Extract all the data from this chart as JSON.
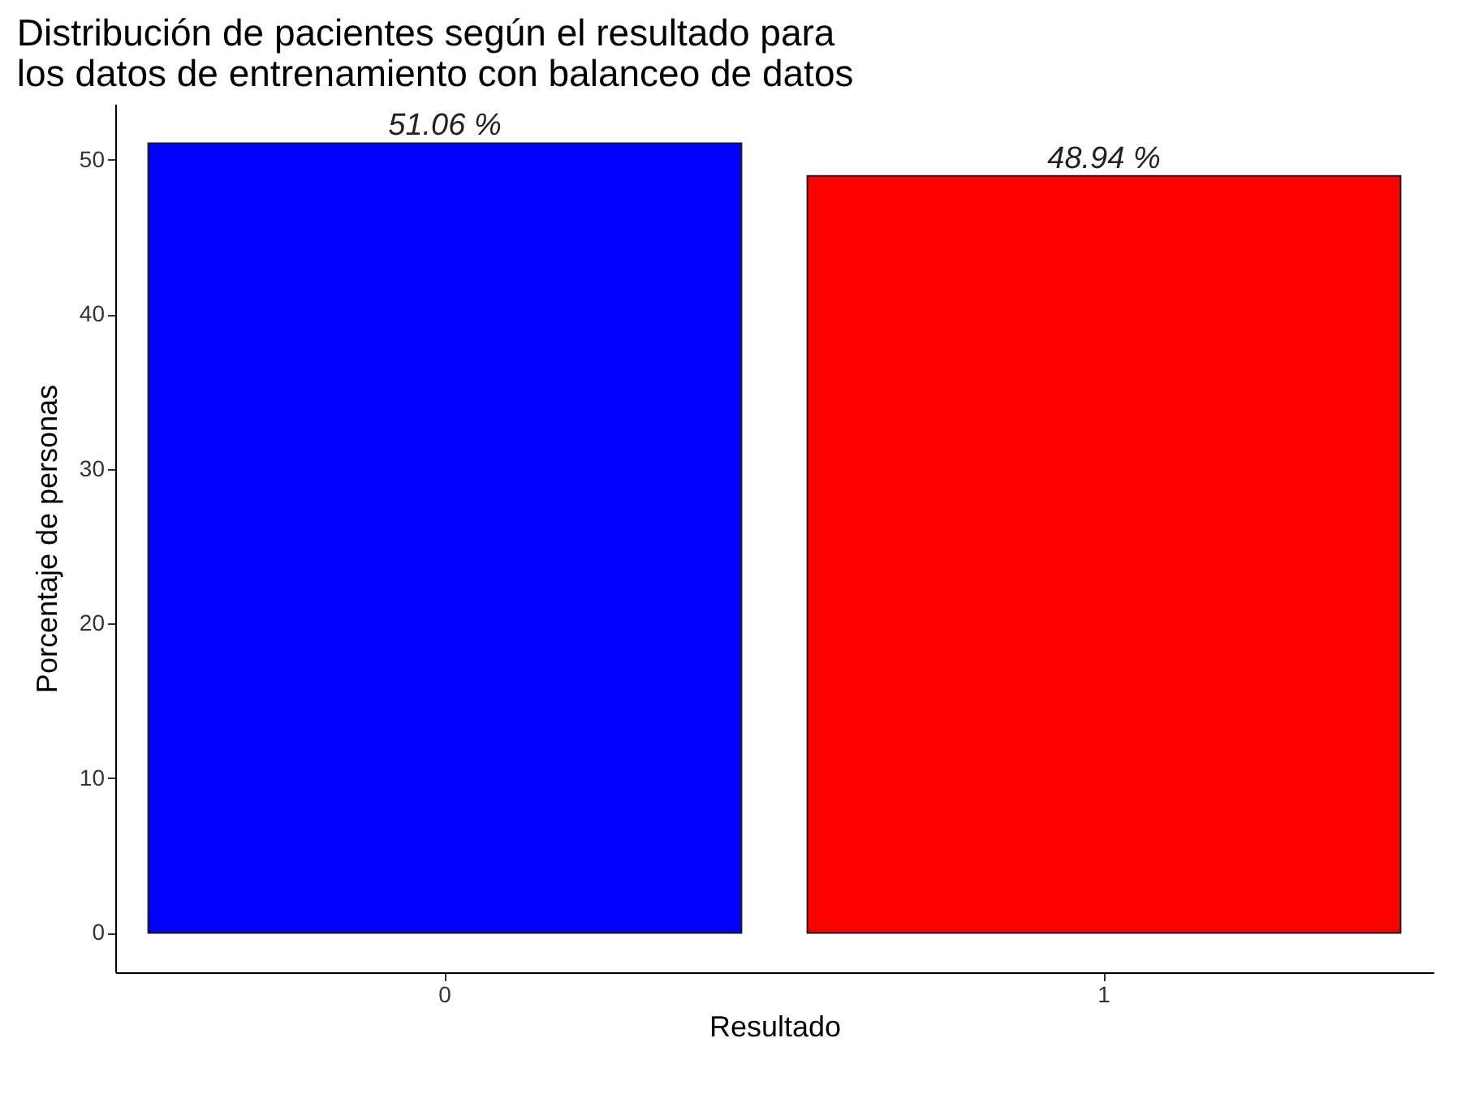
{
  "chart_data": {
    "type": "bar",
    "title": "Distribución de pacientes según el resultado para\n los datos de entrenamiento con balanceo de datos",
    "xlabel": "Resultado",
    "ylabel": "Porcentaje de personas",
    "categories": [
      "0",
      "1"
    ],
    "values": [
      51.06,
      48.94
    ],
    "colors": [
      "#0000ff",
      "#ff0000"
    ],
    "value_labels": [
      "51.06 %",
      "48.94 %"
    ],
    "ylim": [
      -2.55,
      53.6
    ],
    "yticks": [
      0,
      10,
      20,
      30,
      40,
      50
    ],
    "grid": false
  }
}
